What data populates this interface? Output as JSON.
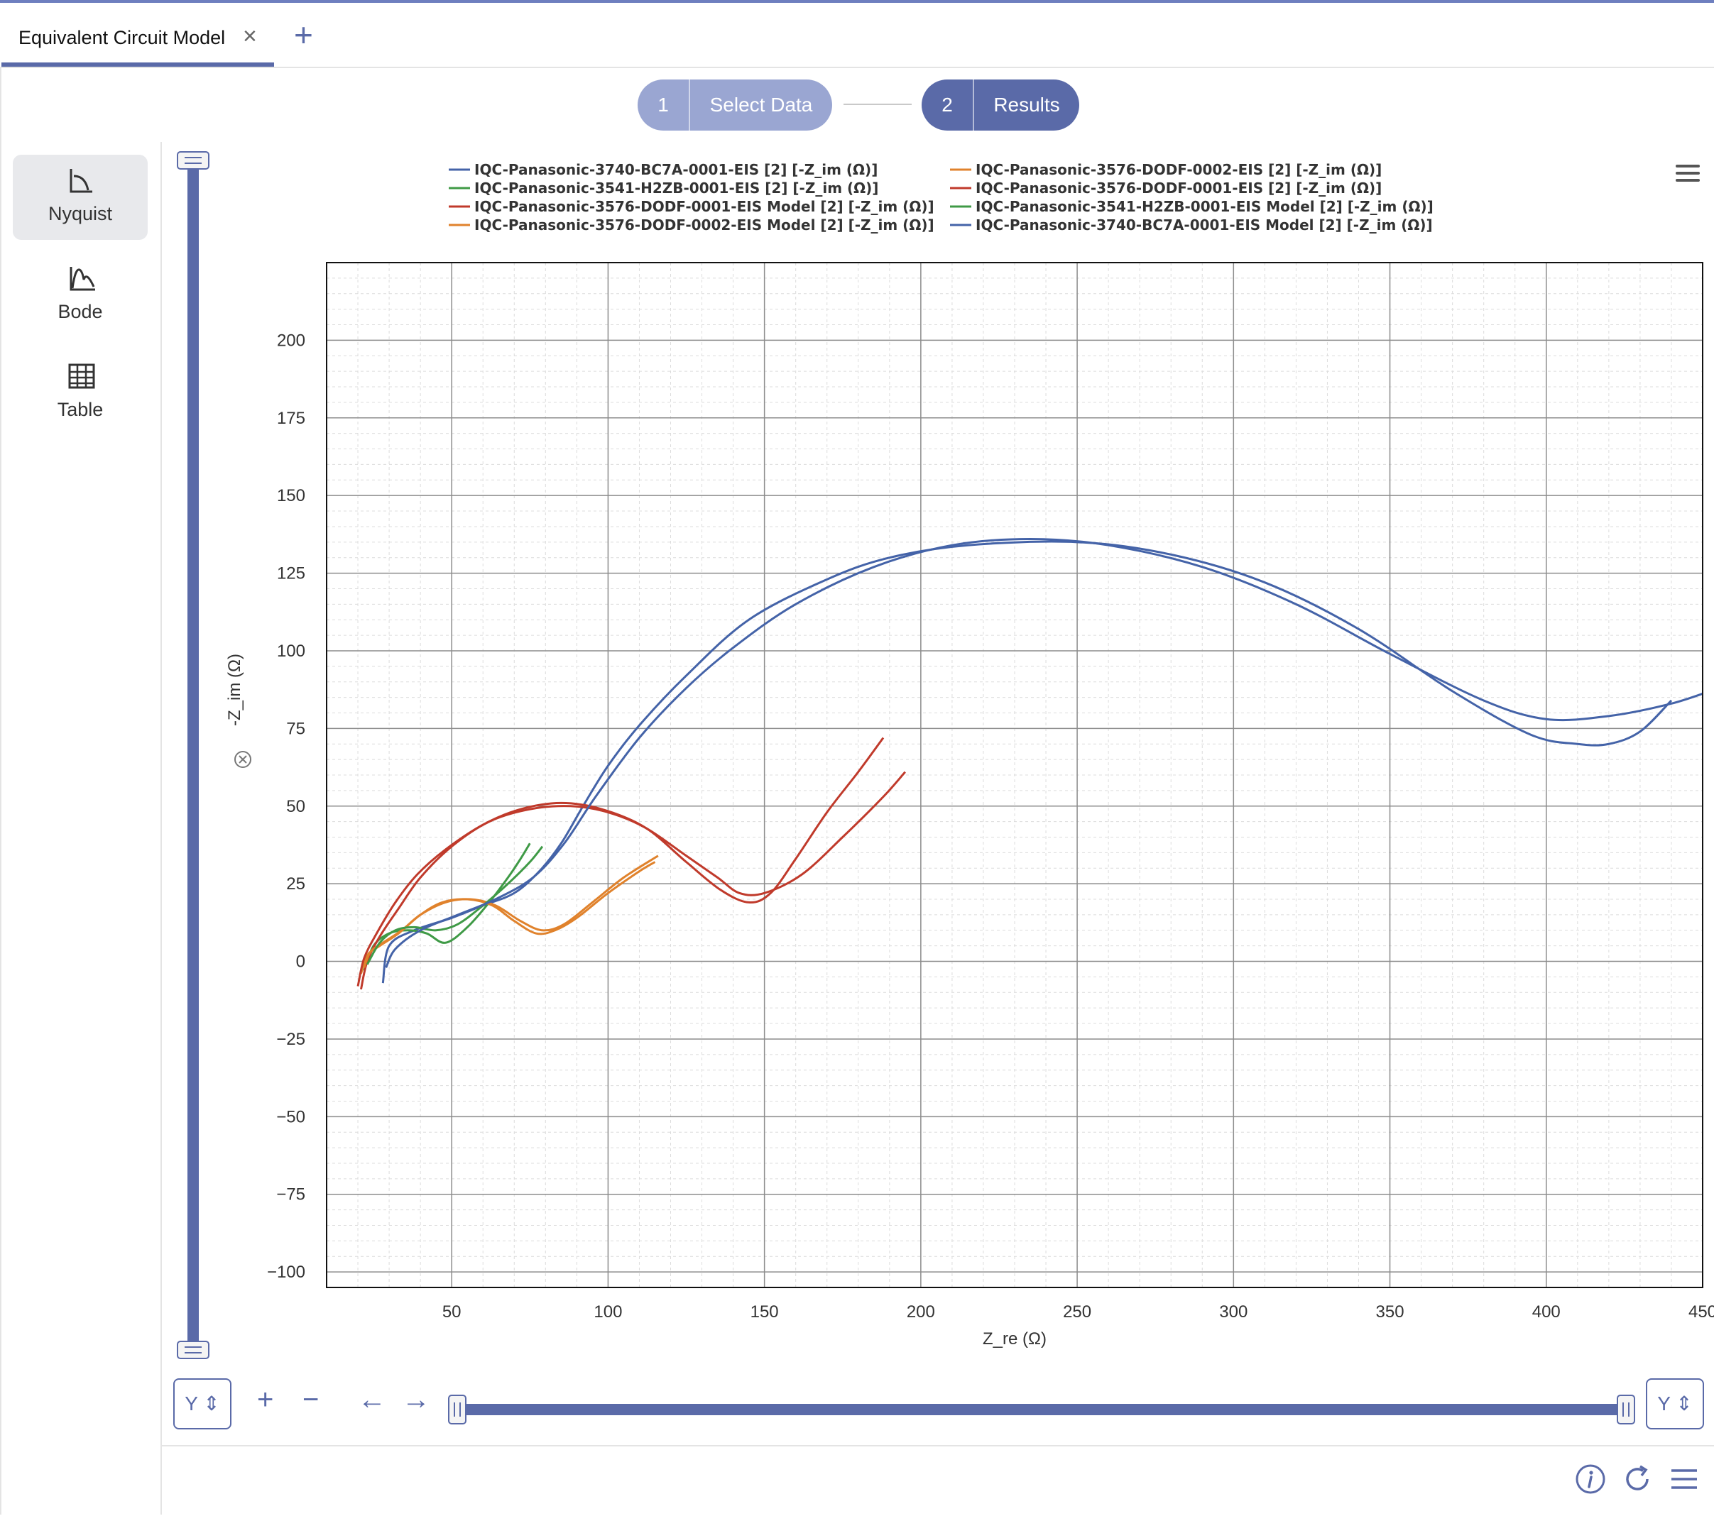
{
  "tab": {
    "label": "Equivalent Circuit Model",
    "close_glyph": "×",
    "add_glyph": "+"
  },
  "stepper": [
    {
      "num": "1",
      "label": "Select Data"
    },
    {
      "num": "2",
      "label": "Results"
    }
  ],
  "sidebar": [
    {
      "label": "Nyquist",
      "icon": "nyquist-icon",
      "active": true
    },
    {
      "label": "Bode",
      "icon": "bode-icon",
      "active": false
    },
    {
      "label": "Table",
      "icon": "table-icon",
      "active": false
    }
  ],
  "controls": {
    "y_select_left": "Y",
    "y_select_right": "Y",
    "zoom_in": "+",
    "zoom_out": "−",
    "pan_left": "←",
    "pan_right": "→"
  },
  "chart_data": {
    "type": "line",
    "xlabel": "Z_re (Ω)",
    "ylabel": "-Z_im (Ω)",
    "xlim": [
      10,
      450
    ],
    "ylim": [
      -105,
      225
    ],
    "xticks": [
      50,
      100,
      150,
      200,
      250,
      300,
      350,
      400,
      450
    ],
    "yticks": [
      200,
      175,
      150,
      125,
      100,
      75,
      50,
      25,
      0,
      -25,
      -50,
      -75,
      -100
    ],
    "grid": true,
    "legend_position": "top",
    "series": [
      {
        "name": "IQC-Panasonic-3740-BC7A-0001-EIS [2] [-Z_im (Ω)]",
        "color": "#4463a8",
        "x": [
          28,
          30,
          38,
          50,
          60,
          70,
          78,
          85,
          92,
          100,
          110,
          125,
          145,
          170,
          190,
          215,
          250,
          280,
          310,
          340,
          370,
          395,
          410,
          420,
          430,
          440
        ],
        "y": [
          -7,
          5,
          10,
          14,
          18,
          22,
          29,
          38,
          50,
          63,
          76,
          92,
          110,
          123,
          130,
          134,
          135,
          131,
          122,
          107,
          87,
          73,
          70,
          70,
          74,
          84
        ]
      },
      {
        "name": "IQC-Panasonic-3541-H2ZB-0001-EIS [2] [-Z_im (Ω)]",
        "color": "#3f9a46",
        "x": [
          22,
          25,
          30,
          36,
          42,
          48,
          55,
          62,
          68,
          72,
          75
        ],
        "y": [
          -3,
          5,
          9,
          10,
          9,
          6,
          11,
          19,
          27,
          33,
          38
        ]
      },
      {
        "name": "IQC-Panasonic-3576-DODF-0001-EIS Model [2] [-Z_im (Ω)]",
        "color": "#c03a2b",
        "x": [
          21,
          23,
          27,
          33,
          40,
          50,
          62,
          75,
          88,
          100,
          112,
          125,
          135,
          142,
          150,
          162,
          175,
          188,
          195
        ],
        "y": [
          -9,
          0,
          8,
          17,
          27,
          37,
          45,
          49,
          50,
          48,
          43,
          34,
          27,
          22,
          22,
          28,
          40,
          53,
          61
        ]
      },
      {
        "name": "IQC-Panasonic-3576-DODF-0002-EIS Model [2] [-Z_im (Ω)]",
        "color": "#e0822c",
        "x": [
          22,
          24,
          28,
          34,
          40,
          48,
          56,
          64,
          72,
          79,
          86,
          95,
          105,
          116
        ],
        "y": [
          -2,
          3,
          6,
          10,
          15,
          19,
          20,
          18,
          13,
          10,
          12,
          19,
          27,
          34
        ]
      },
      {
        "name": "IQC-Panasonic-3576-DODF-0002-EIS [2] [-Z_im (Ω)]",
        "color": "#e0822c",
        "x": [
          21,
          23,
          27,
          33,
          40,
          47,
          55,
          63,
          70,
          77,
          83,
          90,
          100,
          110,
          115
        ],
        "y": [
          -4,
          2,
          5,
          9,
          15,
          19,
          20,
          18,
          13,
          9,
          10,
          14,
          22,
          29,
          32
        ]
      },
      {
        "name": "IQC-Panasonic-3576-DODF-0001-EIS [2] [-Z_im (Ω)]",
        "color": "#c03a2b",
        "x": [
          20,
          22,
          26,
          32,
          39,
          48,
          60,
          72,
          85,
          98,
          112,
          125,
          136,
          145,
          152,
          160,
          170,
          180,
          188
        ],
        "y": [
          -8,
          1,
          9,
          19,
          28,
          36,
          44,
          49,
          51,
          49,
          43,
          32,
          23,
          19,
          22,
          33,
          48,
          61,
          72
        ]
      },
      {
        "name": "IQC-Panasonic-3541-H2ZB-0001-EIS Model [2] [-Z_im (Ω)]",
        "color": "#3f9a46",
        "x": [
          23,
          27,
          32,
          38,
          45,
          52,
          60,
          68,
          75,
          79
        ],
        "y": [
          -1,
          6,
          10,
          11,
          10,
          12,
          18,
          25,
          32,
          37
        ]
      },
      {
        "name": "IQC-Panasonic-3740-BC7A-0001-EIS Model [2] [-Z_im (Ω)]",
        "color": "#4463a8",
        "x": [
          29,
          32,
          40,
          52,
          64,
          76,
          86,
          96,
          110,
          125,
          140,
          160,
          185,
          210,
          235,
          260,
          290,
          320,
          350,
          380,
          400,
          420,
          440,
          455
        ],
        "y": [
          -2,
          4,
          10,
          15,
          20,
          27,
          38,
          53,
          72,
          88,
          101,
          115,
          127,
          134,
          136,
          134,
          127,
          115,
          99,
          84,
          78,
          79,
          83,
          88
        ]
      }
    ]
  }
}
